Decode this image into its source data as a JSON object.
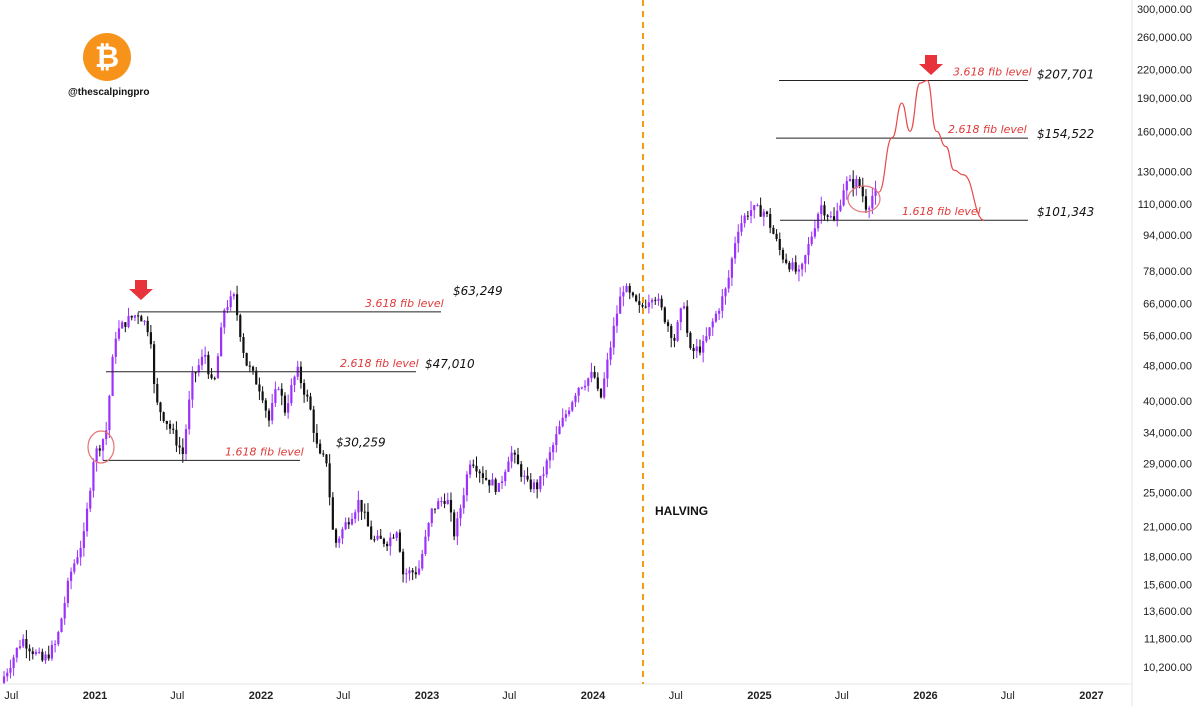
{
  "brand": {
    "handle": "@thescalpingpro",
    "logo_icon": "bitcoin-icon",
    "logo_color": "#f7931a",
    "logo_glyph": "₿"
  },
  "colors": {
    "bull": "#9b30ff",
    "bear": "#111111",
    "fib_text": "#e03a3a",
    "projection": "#e84a4a",
    "halving_line": "#f39c12",
    "arrow": "#e8333b"
  },
  "chart_data": {
    "type": "candlestick",
    "scale": "log",
    "grid": false,
    "y_ticks": [
      "300,000.00",
      "260,000.00",
      "220,000.00",
      "190,000.00",
      "160,000.00",
      "130,000.00",
      "110,000.00",
      "94,000.00",
      "78,000.00",
      "66,000.00",
      "56,000.00",
      "48,000.00",
      "40,000.00",
      "34,000.00",
      "29,000.00",
      "25,000.00",
      "21,000.00",
      "18,000.00",
      "15,600.00",
      "13,600.00",
      "11,800.00",
      "10,200.00"
    ],
    "x_ticks": [
      {
        "label": "Jul",
        "date": "2020-07-01"
      },
      {
        "label": "2021",
        "date": "2021-01-01"
      },
      {
        "label": "Jul",
        "date": "2021-07-01"
      },
      {
        "label": "2022",
        "date": "2022-01-01"
      },
      {
        "label": "Jul",
        "date": "2022-07-01"
      },
      {
        "label": "2023",
        "date": "2023-01-01"
      },
      {
        "label": "Jul",
        "date": "2023-07-01"
      },
      {
        "label": "2024",
        "date": "2024-01-01"
      },
      {
        "label": "Jul",
        "date": "2024-07-01"
      },
      {
        "label": "2025",
        "date": "2025-01-01"
      },
      {
        "label": "Jul",
        "date": "2025-07-01"
      },
      {
        "label": "2026",
        "date": "2026-01-01"
      },
      {
        "label": "Jul",
        "date": "2026-07-01"
      },
      {
        "label": "2027",
        "date": "2027-01-01"
      }
    ],
    "price_path": [
      [
        "2020-06-15",
        9400
      ],
      [
        "2020-08-01",
        11800
      ],
      [
        "2020-09-15",
        10500
      ],
      [
        "2020-10-15",
        11500
      ],
      [
        "2020-11-15",
        16500
      ],
      [
        "2020-12-15",
        20000
      ],
      [
        "2021-01-05",
        30000
      ],
      [
        "2021-02-01",
        34000
      ],
      [
        "2021-02-21",
        56000
      ],
      [
        "2021-03-15",
        60000
      ],
      [
        "2021-04-14",
        63000
      ],
      [
        "2021-05-10",
        57000
      ],
      [
        "2021-05-20",
        40000
      ],
      [
        "2021-06-15",
        36000
      ],
      [
        "2021-07-20",
        30500
      ],
      [
        "2021-08-10",
        45000
      ],
      [
        "2021-09-07",
        51000
      ],
      [
        "2021-09-25",
        42000
      ],
      [
        "2021-10-20",
        65000
      ],
      [
        "2021-11-10",
        68000
      ],
      [
        "2021-12-05",
        49000
      ],
      [
        "2022-01-10",
        42000
      ],
      [
        "2022-01-25",
        36000
      ],
      [
        "2022-02-15",
        44000
      ],
      [
        "2022-03-01",
        38000
      ],
      [
        "2022-03-28",
        47000
      ],
      [
        "2022-04-25",
        39000
      ],
      [
        "2022-05-15",
        30000
      ],
      [
        "2022-06-01",
        29500
      ],
      [
        "2022-06-18",
        19000
      ],
      [
        "2022-07-10",
        21000
      ],
      [
        "2022-08-12",
        24000
      ],
      [
        "2022-09-10",
        19500
      ],
      [
        "2022-10-15",
        19500
      ],
      [
        "2022-11-05",
        21000
      ],
      [
        "2022-11-15",
        16500
      ],
      [
        "2022-12-20",
        16700
      ],
      [
        "2023-01-20",
        23000
      ],
      [
        "2023-02-20",
        24500
      ],
      [
        "2023-03-10",
        20000
      ],
      [
        "2023-04-14",
        30000
      ],
      [
        "2023-05-15",
        27000
      ],
      [
        "2023-06-15",
        25500
      ],
      [
        "2023-07-10",
        31000
      ],
      [
        "2023-08-17",
        26000
      ],
      [
        "2023-09-10",
        25800
      ],
      [
        "2023-10-25",
        34500
      ],
      [
        "2023-12-05",
        43000
      ],
      [
        "2024-01-10",
        46000
      ],
      [
        "2024-01-23",
        39500
      ],
      [
        "2024-02-28",
        62000
      ],
      [
        "2024-03-14",
        72000
      ],
      [
        "2024-04-20",
        64000
      ],
      [
        "2024-05-20",
        70000
      ],
      [
        "2024-07-05",
        55000
      ],
      [
        "2024-07-28",
        68000
      ],
      [
        "2024-08-05",
        51000
      ],
      [
        "2024-09-06",
        53000
      ],
      [
        "2024-10-29",
        72000
      ],
      [
        "2024-11-20",
        97000
      ],
      [
        "2024-12-17",
        107000
      ],
      [
        "2025-01-20",
        106000
      ],
      [
        "2025-02-25",
        85000
      ],
      [
        "2025-04-07",
        76000
      ],
      [
        "2025-05-22",
        110000
      ],
      [
        "2025-06-22",
        100000
      ],
      [
        "2025-07-14",
        122000
      ],
      [
        "2025-08-14",
        123000
      ],
      [
        "2025-09-01",
        108000
      ],
      [
        "2025-09-15",
        116000
      ]
    ],
    "fib_levels": [
      {
        "label": "1.618 fib level",
        "price_label": "$30,259",
        "value": 30259
      },
      {
        "label": "2.618 fib level",
        "price_label": "$47,010",
        "value": 47010
      },
      {
        "label": "3.618 fib level",
        "price_label": "$63,249",
        "value": 63249
      },
      {
        "label": "1.618 fib level",
        "price_label": "$101,343",
        "value": 101343
      },
      {
        "label": "2.618 fib level",
        "price_label": "$154,522",
        "value": 154522
      },
      {
        "label": "3.618 fib level",
        "price_label": "$207,701",
        "value": 207701
      }
    ],
    "annotations": {
      "halving": "HALVING",
      "halving_date": "2024-04-20"
    },
    "projection": [
      [
        "2025-09-20",
        117000
      ],
      [
        "2025-10-20",
        155000
      ],
      [
        "2025-11-10",
        185000
      ],
      [
        "2025-11-28",
        160000
      ],
      [
        "2025-12-20",
        205000
      ],
      [
        "2026-01-05",
        207701
      ],
      [
        "2026-01-25",
        160000
      ],
      [
        "2026-02-15",
        148000
      ],
      [
        "2026-03-05",
        131000
      ],
      [
        "2026-03-25",
        128000
      ],
      [
        "2026-05-10",
        101343
      ]
    ]
  }
}
